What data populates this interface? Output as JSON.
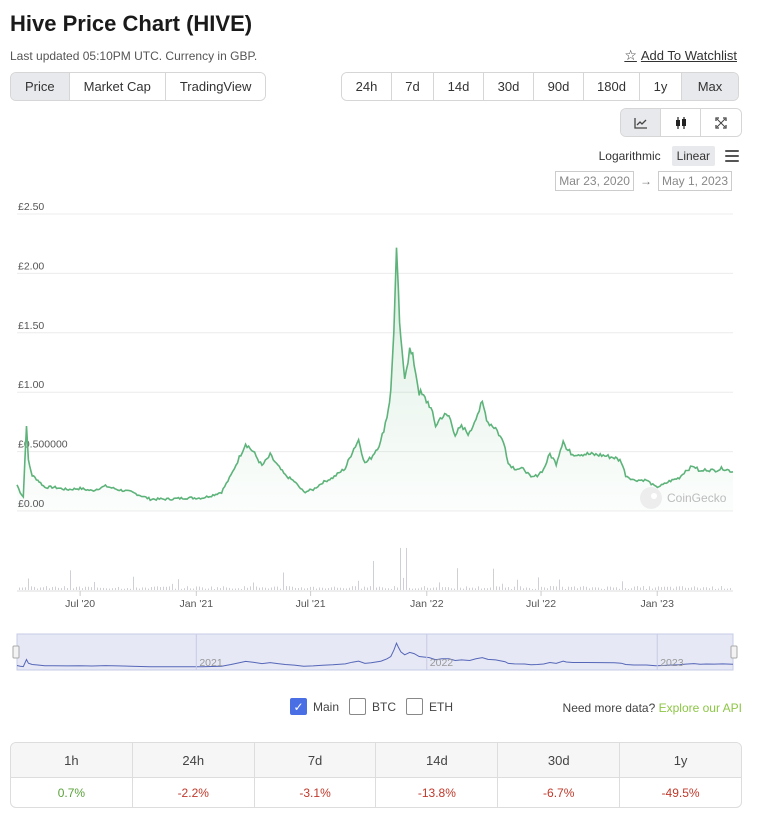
{
  "header": {
    "title": "Hive Price Chart (HIVE)",
    "subtitle": "Last updated 05:10PM UTC. Currency in GBP.",
    "watchlist_label": "Add To Watchlist",
    "watchlist_icon": "star-outline-icon"
  },
  "tabs": [
    {
      "label": "Price",
      "active": true
    },
    {
      "label": "Market Cap",
      "active": false
    },
    {
      "label": "TradingView",
      "active": false
    }
  ],
  "ranges": [
    {
      "label": "24h",
      "active": false
    },
    {
      "label": "7d",
      "active": false
    },
    {
      "label": "14d",
      "active": false
    },
    {
      "label": "30d",
      "active": false
    },
    {
      "label": "90d",
      "active": false
    },
    {
      "label": "180d",
      "active": false
    },
    {
      "label": "1y",
      "active": false
    },
    {
      "label": "Max",
      "active": true
    }
  ],
  "chart_types": [
    {
      "name": "line-chart-icon",
      "active": true
    },
    {
      "name": "candlestick-icon",
      "active": false
    },
    {
      "name": "fullscreen-icon",
      "active": false
    }
  ],
  "scale": {
    "log_label": "Logarithmic",
    "linear_label": "Linear",
    "active": "Linear"
  },
  "date_range": {
    "from": "Mar 23, 2020",
    "arrow": "→",
    "to": "May 1, 2023"
  },
  "chart_data": {
    "type": "line",
    "watermark": "CoinGecko",
    "ylim": [
      0,
      2.5
    ],
    "y_ticks": [
      {
        "value": 0,
        "label": "£0.00"
      },
      {
        "value": 0.5,
        "label": "£0.500000"
      },
      {
        "value": 1.0,
        "label": "£1.00"
      },
      {
        "value": 1.5,
        "label": "£1.50"
      },
      {
        "value": 2.0,
        "label": "£2.00"
      },
      {
        "value": 2.5,
        "label": "£2.50"
      }
    ],
    "x_ticks": [
      {
        "date": "2020-07-01",
        "label": "Jul '20"
      },
      {
        "date": "2021-01-01",
        "label": "Jan '21"
      },
      {
        "date": "2021-07-01",
        "label": "Jul '21"
      },
      {
        "date": "2022-01-01",
        "label": "Jan '22"
      },
      {
        "date": "2022-07-01",
        "label": "Jul '22"
      },
      {
        "date": "2023-01-01",
        "label": "Jan '23"
      }
    ],
    "xlim": [
      "2020-03-23",
      "2023-05-01"
    ],
    "line_color": "#5db37a",
    "volume_color": "#cfcfd6",
    "navigator_color": "#5566b8",
    "navigator_ticks": [
      "2021",
      "2022",
      "2023"
    ],
    "price_points": [
      [
        "2020-03-23",
        0.22
      ],
      [
        "2020-03-28",
        0.16
      ],
      [
        "2020-04-02",
        0.12
      ],
      [
        "2020-04-07",
        0.74
      ],
      [
        "2020-04-10",
        0.42
      ],
      [
        "2020-04-16",
        0.3
      ],
      [
        "2020-04-25",
        0.26
      ],
      [
        "2020-05-06",
        0.2
      ],
      [
        "2020-05-20",
        0.2
      ],
      [
        "2020-06-10",
        0.18
      ],
      [
        "2020-07-01",
        0.19
      ],
      [
        "2020-07-20",
        0.17
      ],
      [
        "2020-08-10",
        0.21
      ],
      [
        "2020-08-30",
        0.18
      ],
      [
        "2020-09-20",
        0.16
      ],
      [
        "2020-10-20",
        0.1
      ],
      [
        "2020-11-20",
        0.1
      ],
      [
        "2020-12-15",
        0.11
      ],
      [
        "2021-01-10",
        0.11
      ],
      [
        "2021-01-25",
        0.13
      ],
      [
        "2021-02-10",
        0.16
      ],
      [
        "2021-02-25",
        0.3
      ],
      [
        "2021-03-10",
        0.45
      ],
      [
        "2021-03-20",
        0.57
      ],
      [
        "2021-04-01",
        0.5
      ],
      [
        "2021-04-15",
        0.38
      ],
      [
        "2021-04-28",
        0.47
      ],
      [
        "2021-05-10",
        0.38
      ],
      [
        "2021-05-22",
        0.3
      ],
      [
        "2021-06-05",
        0.25
      ],
      [
        "2021-06-20",
        0.16
      ],
      [
        "2021-07-05",
        0.18
      ],
      [
        "2021-07-20",
        0.24
      ],
      [
        "2021-08-05",
        0.28
      ],
      [
        "2021-08-25",
        0.36
      ],
      [
        "2021-09-05",
        0.5
      ],
      [
        "2021-09-15",
        0.6
      ],
      [
        "2021-09-25",
        0.4
      ],
      [
        "2021-10-05",
        0.45
      ],
      [
        "2021-10-20",
        0.58
      ],
      [
        "2021-10-30",
        0.8
      ],
      [
        "2021-11-05",
        1.0
      ],
      [
        "2021-11-10",
        1.55
      ],
      [
        "2021-11-14",
        2.15
      ],
      [
        "2021-11-17",
        1.8
      ],
      [
        "2021-11-21",
        1.4
      ],
      [
        "2021-11-27",
        1.15
      ],
      [
        "2021-12-05",
        1.35
      ],
      [
        "2021-12-12",
        1.25
      ],
      [
        "2021-12-20",
        1.0
      ],
      [
        "2022-01-05",
        0.9
      ],
      [
        "2022-01-15",
        0.72
      ],
      [
        "2022-01-25",
        0.8
      ],
      [
        "2022-02-05",
        0.8
      ],
      [
        "2022-02-15",
        0.65
      ],
      [
        "2022-02-25",
        0.7
      ],
      [
        "2022-03-10",
        0.65
      ],
      [
        "2022-03-20",
        0.8
      ],
      [
        "2022-03-30",
        0.9
      ],
      [
        "2022-04-08",
        0.75
      ],
      [
        "2022-04-20",
        0.7
      ],
      [
        "2022-05-05",
        0.55
      ],
      [
        "2022-05-10",
        0.4
      ],
      [
        "2022-05-20",
        0.36
      ],
      [
        "2022-06-05",
        0.35
      ],
      [
        "2022-06-15",
        0.28
      ],
      [
        "2022-06-25",
        0.3
      ],
      [
        "2022-07-05",
        0.35
      ],
      [
        "2022-07-15",
        0.48
      ],
      [
        "2022-07-25",
        0.4
      ],
      [
        "2022-08-05",
        0.6
      ],
      [
        "2022-08-10",
        0.52
      ],
      [
        "2022-08-20",
        0.48
      ],
      [
        "2022-09-10",
        0.48
      ],
      [
        "2022-10-05",
        0.47
      ],
      [
        "2022-10-25",
        0.45
      ],
      [
        "2022-11-05",
        0.42
      ],
      [
        "2022-11-12",
        0.3
      ],
      [
        "2022-11-25",
        0.26
      ],
      [
        "2022-12-15",
        0.26
      ],
      [
        "2022-12-30",
        0.2
      ],
      [
        "2023-01-10",
        0.22
      ],
      [
        "2023-01-20",
        0.25
      ],
      [
        "2023-02-05",
        0.28
      ],
      [
        "2023-02-15",
        0.34
      ],
      [
        "2023-02-28",
        0.38
      ],
      [
        "2023-03-10",
        0.33
      ],
      [
        "2023-03-20",
        0.35
      ],
      [
        "2023-04-01",
        0.34
      ],
      [
        "2023-04-15",
        0.36
      ],
      [
        "2023-05-01",
        0.33
      ]
    ]
  },
  "legend": [
    {
      "label": "Main",
      "checked": true
    },
    {
      "label": "BTC",
      "checked": false
    },
    {
      "label": "ETH",
      "checked": false
    }
  ],
  "more_data": {
    "text": "Need more data?",
    "link": "Explore our API"
  },
  "changes": [
    {
      "period": "1h",
      "value": "0.7%",
      "dir": "up"
    },
    {
      "period": "24h",
      "value": "-2.2%",
      "dir": "down"
    },
    {
      "period": "7d",
      "value": "-3.1%",
      "dir": "down"
    },
    {
      "period": "14d",
      "value": "-13.8%",
      "dir": "down"
    },
    {
      "period": "30d",
      "value": "-6.7%",
      "dir": "down"
    },
    {
      "period": "1y",
      "value": "-49.5%",
      "dir": "down"
    }
  ]
}
